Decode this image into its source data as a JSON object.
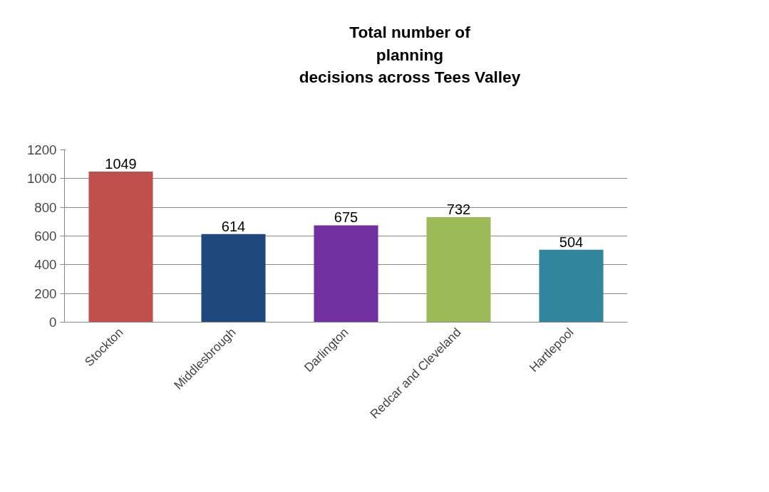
{
  "chart_data": {
    "type": "bar",
    "title": "Total number of\nplanning\ndecisions across Tees Valley",
    "categories": [
      "Stockton",
      "Middlesbrough",
      "Darlington",
      "Redcar and Cleveland",
      "Hartlepool"
    ],
    "values": [
      1049,
      614,
      675,
      732,
      504
    ],
    "colors": [
      "#c0504d",
      "#1f497d",
      "#7030a0",
      "#9bbb59",
      "#31859c"
    ],
    "ylim": [
      0,
      1200
    ],
    "yticks": [
      0,
      200,
      400,
      600,
      800,
      1000,
      1200
    ],
    "grid": "y",
    "data_labels": true
  }
}
